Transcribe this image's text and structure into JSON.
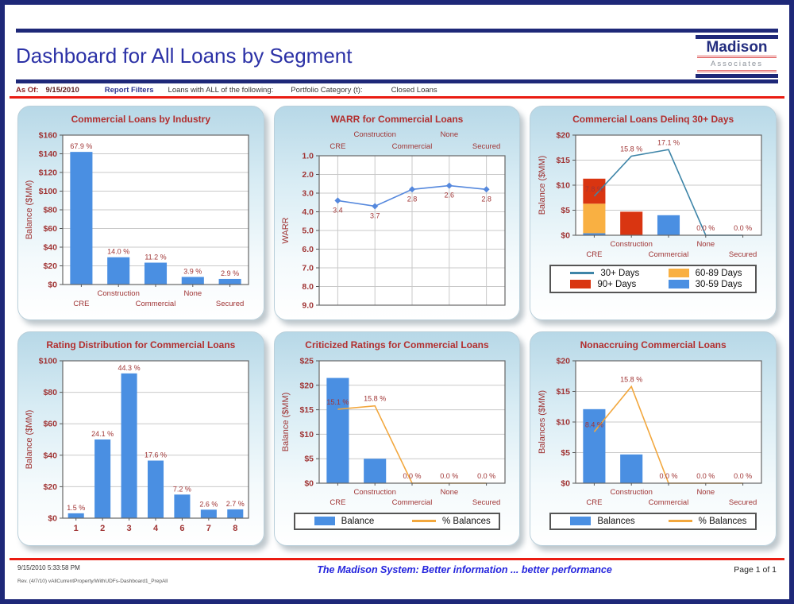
{
  "page": {
    "title": "Dashboard for All Loans by Segment",
    "logo": {
      "name": "Madison",
      "sub": "Associates"
    },
    "filters": {
      "as_of_label": "As Of:",
      "as_of_value": "9/15/2010",
      "report_filters_label": "Report Filters",
      "filter_desc": "Loans with ALL of the following:",
      "filter_field": "Portfolio Category (t):",
      "filter_value": "Closed Loans"
    },
    "footer": {
      "timestamp": "9/15/2010 5:33:58 PM",
      "revision": "Rev. (4/7/10) vAllCurrentProperty/WithUDFs-Dashboard1_PrepAll",
      "tagline": "The Madison System: Better information ... better performance",
      "page_info": "Page 1 of 1"
    }
  },
  "colors": {
    "navy": "#1e2878",
    "title_blue": "#2b31a6",
    "maroon": "#a03535",
    "red_rule": "#ea1c12",
    "bar_blue": "#4a8fe2",
    "bar_red": "#d93511",
    "bar_orange": "#f9b042",
    "line_teal": "#3e85a8",
    "line_blue": "#5588dd",
    "line_orange": "#f2a73d"
  },
  "chart_data": [
    {
      "key": "industry",
      "type": "bar",
      "title": "Commercial Loans by Industry",
      "ylabel": "Balance ($MM)",
      "y_min": 0,
      "y_max": 160,
      "y_step": 20,
      "y_prefix": "$",
      "x_labels_position": "bottom",
      "stagger": true,
      "grid": "h",
      "categories": [
        "CRE",
        "Construction",
        "Commercial",
        "None",
        "Secured"
      ],
      "series": [
        {
          "name": "Balance",
          "kind": "bar",
          "color_key": "bar_blue",
          "values": [
            142,
            29.2,
            23.4,
            8.1,
            6.0
          ],
          "labels": [
            "67.9 %",
            "14.0 %",
            "11.2 %",
            "3.9 %",
            "2.9 %"
          ]
        }
      ],
      "legend": null
    },
    {
      "key": "warr",
      "type": "line",
      "title": "WARR for Commercial Loans",
      "ylabel": "WARR",
      "y_min": 1.0,
      "y_max": 9.0,
      "y_step": 1.0,
      "y_decimals": 1,
      "y_inverted": true,
      "x_labels_position": "top",
      "stagger": true,
      "grid": "hv",
      "categories": [
        "CRE",
        "Construction",
        "Commercial",
        "None",
        "Secured"
      ],
      "series": [
        {
          "name": "WARR",
          "kind": "line",
          "color_key": "line_blue",
          "marker": true,
          "values": [
            3.4,
            3.7,
            2.8,
            2.6,
            2.8
          ],
          "labels": [
            "3.4",
            "3.7",
            "2.8",
            "2.6",
            "2.8"
          ]
        }
      ],
      "legend": null
    },
    {
      "key": "delinq30",
      "type": "stacked-bar-line",
      "title": "Commercial Loans Delinq 30+ Days",
      "ylabel": "Balance ($MM)",
      "y_min": 0,
      "y_max": 20,
      "y_step": 5,
      "y_prefix": "$",
      "x_labels_position": "bottom",
      "stagger": true,
      "grid": "h",
      "categories": [
        "CRE",
        "Construction",
        "Commercial",
        "None",
        "Secured"
      ],
      "series": [
        {
          "name": "30-59 Days",
          "kind": "bar-stack",
          "color_key": "bar_blue",
          "values": [
            0.4,
            0,
            4.0,
            0,
            0
          ]
        },
        {
          "name": "60-89 Days",
          "kind": "bar-stack",
          "color_key": "bar_orange",
          "values": [
            5.9,
            0,
            0,
            0,
            0
          ]
        },
        {
          "name": "90+ Days",
          "kind": "bar-stack",
          "color_key": "bar_red",
          "values": [
            5.0,
            4.7,
            0,
            0,
            0
          ]
        },
        {
          "name": "30+ Days",
          "kind": "line",
          "color_key": "line_teal",
          "values": [
            7.8,
            15.8,
            17.1,
            0,
            0
          ],
          "labels": [
            "7.8 %",
            "15.8 %",
            "17.1 %",
            "0.0 %",
            "0.0 %"
          ]
        }
      ],
      "legend": {
        "rows": 2,
        "items": [
          {
            "name": "30+ Days",
            "swatch": "line",
            "color_key": "line_teal"
          },
          {
            "name": "60-89 Days",
            "swatch": "box",
            "color_key": "bar_orange"
          },
          {
            "name": "90+ Days",
            "swatch": "box",
            "color_key": "bar_red"
          },
          {
            "name": "30-59 Days",
            "swatch": "box",
            "color_key": "bar_blue"
          }
        ]
      }
    },
    {
      "key": "rating",
      "type": "bar",
      "title": "Rating Distribution for Commercial Loans",
      "ylabel": "Balance ($MM)",
      "y_min": 0,
      "y_max": 100,
      "y_step": 20,
      "y_prefix": "$",
      "x_labels_position": "bottom",
      "stagger": false,
      "grid": "h",
      "categories": [
        "1",
        "2",
        "3",
        "4",
        "6",
        "7",
        "8"
      ],
      "series": [
        {
          "name": "Balance",
          "kind": "bar",
          "color_key": "bar_blue",
          "values": [
            3.1,
            50.0,
            92.0,
            36.6,
            15.0,
            5.4,
            5.6
          ],
          "labels": [
            "1.5 %",
            "24.1 %",
            "44.3 %",
            "17.6 %",
            "7.2 %",
            "2.6 %",
            "2.7 %"
          ]
        }
      ],
      "legend": null
    },
    {
      "key": "criticized",
      "type": "bar-line",
      "title": "Criticized Ratings for Commercial Loans",
      "ylabel": "Balance ($MM)",
      "y_min": 0,
      "y_max": 25,
      "y_step": 5,
      "y_prefix": "$",
      "x_labels_position": "bottom",
      "stagger": true,
      "grid": "h",
      "categories": [
        "CRE",
        "Construction",
        "Commercial",
        "None",
        "Secured"
      ],
      "series": [
        {
          "name": "Balance",
          "kind": "bar",
          "color_key": "bar_blue",
          "values": [
            21.5,
            5.0,
            0,
            0,
            0
          ]
        },
        {
          "name": "% Balances",
          "kind": "line",
          "color_key": "line_orange",
          "values": [
            15.1,
            15.8,
            0,
            0,
            0
          ],
          "labels": [
            "15.1 %",
            "15.8 %",
            "0.0 %",
            "0.0 %",
            "0.0 %"
          ]
        }
      ],
      "legend": {
        "rows": 1,
        "items": [
          {
            "name": "Balance",
            "swatch": "box",
            "color_key": "bar_blue"
          },
          {
            "name": "% Balances",
            "swatch": "line",
            "color_key": "line_orange"
          }
        ]
      }
    },
    {
      "key": "nonaccruing",
      "type": "bar-line",
      "title": "Nonaccruing Commercial Loans",
      "ylabel": "Balances ($MM)",
      "y_min": 0,
      "y_max": 20,
      "y_step": 5,
      "y_prefix": "$",
      "x_labels_position": "bottom",
      "stagger": true,
      "grid": "h",
      "categories": [
        "CRE",
        "Construction",
        "Commercial",
        "None",
        "Secured"
      ],
      "series": [
        {
          "name": "Balances",
          "kind": "bar",
          "color_key": "bar_blue",
          "values": [
            12.1,
            4.7,
            0,
            0,
            0
          ]
        },
        {
          "name": "% Balances",
          "kind": "line",
          "color_key": "line_orange",
          "values": [
            8.4,
            15.8,
            0,
            0,
            0
          ],
          "labels": [
            "8.4 %",
            "15.8 %",
            "0.0 %",
            "0.0 %",
            "0.0 %"
          ]
        }
      ],
      "legend": {
        "rows": 1,
        "items": [
          {
            "name": "Balances",
            "swatch": "box",
            "color_key": "bar_blue"
          },
          {
            "name": "% Balances",
            "swatch": "line",
            "color_key": "line_orange"
          }
        ]
      }
    }
  ]
}
